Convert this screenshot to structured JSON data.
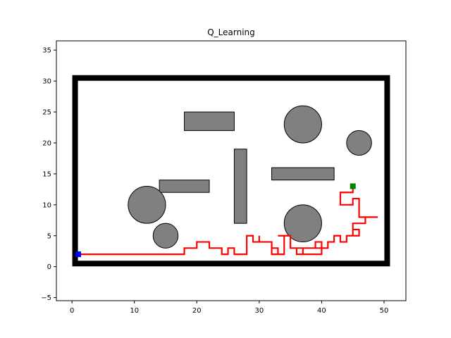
{
  "chart_data": {
    "type": "line",
    "title": "Q_Learning",
    "xlabel": "",
    "ylabel": "",
    "xlim": [
      -2.5,
      53.5
    ],
    "ylim": [
      -5.5,
      36.5
    ],
    "xticks": [
      0,
      10,
      20,
      30,
      40,
      50
    ],
    "yticks": [
      -5,
      0,
      5,
      10,
      15,
      20,
      25,
      30,
      35
    ],
    "grid": false,
    "boundary": {
      "x0": 0.5,
      "y0": 0.5,
      "x1": 50.5,
      "y1": 30.5,
      "color": "#000000"
    },
    "rect_obstacles": [
      {
        "x": 18,
        "y": 22,
        "w": 8,
        "h": 3
      },
      {
        "x": 14,
        "y": 12,
        "w": 8,
        "h": 2
      },
      {
        "x": 26,
        "y": 7,
        "w": 2,
        "h": 12
      },
      {
        "x": 32,
        "y": 14,
        "w": 10,
        "h": 2
      }
    ],
    "circle_obstacles": [
      {
        "cx": 37,
        "cy": 23,
        "r": 3
      },
      {
        "cx": 46,
        "cy": 20,
        "r": 2
      },
      {
        "cx": 12,
        "cy": 10,
        "r": 3
      },
      {
        "cx": 15,
        "cy": 5,
        "r": 2
      },
      {
        "cx": 37,
        "cy": 7,
        "r": 3
      }
    ],
    "obstacle_color": "#808080",
    "path_color": "#ff0000",
    "start": {
      "x": 1,
      "y": 2,
      "color": "#0000ff"
    },
    "goal": {
      "x": 45,
      "y": 13,
      "color": "#008000"
    },
    "series": [
      {
        "values": [
          [
            1,
            2
          ],
          [
            18,
            2
          ],
          [
            18,
            3
          ],
          [
            20,
            3
          ],
          [
            20,
            4
          ],
          [
            22,
            4
          ],
          [
            22,
            3
          ],
          [
            24,
            3
          ],
          [
            24,
            2
          ],
          [
            25,
            2
          ],
          [
            25,
            3
          ],
          [
            26,
            3
          ],
          [
            26,
            2
          ],
          [
            28,
            2
          ],
          [
            28,
            5
          ],
          [
            29,
            5
          ],
          [
            29,
            4
          ],
          [
            30,
            4
          ],
          [
            30,
            5
          ],
          [
            30,
            4
          ],
          [
            32,
            4
          ],
          [
            32,
            2
          ],
          [
            33,
            2
          ],
          [
            33,
            3
          ],
          [
            32,
            3
          ],
          [
            32,
            2
          ],
          [
            34,
            2
          ],
          [
            34,
            5
          ],
          [
            33,
            5
          ],
          [
            35,
            5
          ],
          [
            35,
            3
          ],
          [
            36,
            3
          ],
          [
            36,
            2
          ],
          [
            37,
            2
          ],
          [
            37,
            3
          ],
          [
            40,
            3
          ],
          [
            40,
            2
          ],
          [
            36,
            2
          ],
          [
            36,
            3
          ],
          [
            39,
            3
          ],
          [
            39,
            4
          ],
          [
            40,
            4
          ],
          [
            40,
            3
          ],
          [
            41,
            3
          ],
          [
            41,
            4
          ],
          [
            42,
            4
          ],
          [
            42,
            5
          ],
          [
            43,
            5
          ],
          [
            43,
            4
          ],
          [
            44,
            4
          ],
          [
            44,
            5
          ],
          [
            45,
            5
          ],
          [
            45,
            6
          ],
          [
            46,
            6
          ],
          [
            46,
            5
          ],
          [
            45,
            5
          ],
          [
            45,
            7
          ],
          [
            47,
            7
          ],
          [
            47,
            8
          ],
          [
            49,
            8
          ],
          [
            46,
            8
          ],
          [
            46,
            11
          ],
          [
            45,
            11
          ],
          [
            45,
            10
          ],
          [
            43,
            10
          ],
          [
            43,
            12
          ],
          [
            45,
            12
          ],
          [
            45,
            13
          ]
        ]
      }
    ]
  }
}
